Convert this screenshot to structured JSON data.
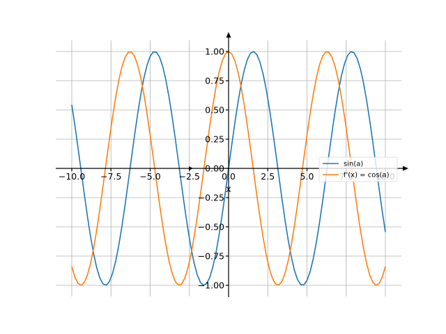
{
  "chart_data": {
    "type": "line",
    "title": "",
    "xlabel": "x",
    "ylabel": "",
    "xlim": [
      -10,
      10
    ],
    "ylim": [
      -1,
      1
    ],
    "grid": true,
    "legend_placement": "center-right",
    "x_ticks": [
      -10.0,
      -7.5,
      -5.0,
      -2.5,
      0.0,
      2.5,
      5.0,
      7.5,
      10.0
    ],
    "x_tick_labels": [
      "−10.0",
      "−7.5",
      "−5.0",
      "−2.5",
      "0.0",
      "2.5",
      "5.0",
      "7.5",
      "10.0"
    ],
    "y_ticks": [
      -1.0,
      -0.75,
      -0.5,
      -0.25,
      0.0,
      0.25,
      0.5,
      0.75,
      1.0
    ],
    "y_tick_labels": [
      "−1.00",
      "−0.75",
      "−0.50",
      "−0.25",
      "0.00",
      "0.25",
      "0.50",
      "0.75",
      "1.00"
    ],
    "series": [
      {
        "name": "sin(a)",
        "function": "sin",
        "color": "#1f77b4",
        "x_range": [
          -10,
          10
        ]
      },
      {
        "name": "f'(x) = cos(a)",
        "function": "cos",
        "color": "#ff7f0e",
        "x_range": [
          -10,
          10
        ]
      }
    ]
  }
}
